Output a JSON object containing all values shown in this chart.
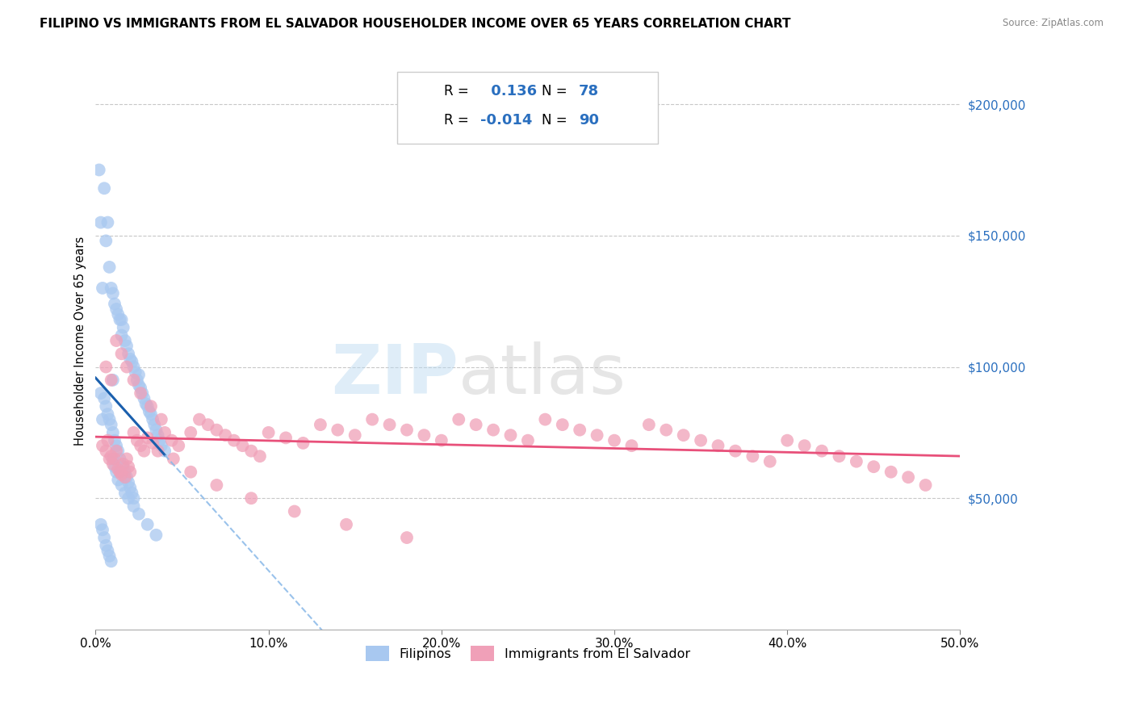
{
  "title": "FILIPINO VS IMMIGRANTS FROM EL SALVADOR HOUSEHOLDER INCOME OVER 65 YEARS CORRELATION CHART",
  "source": "Source: ZipAtlas.com",
  "ylabel": "Householder Income Over 65 years",
  "xlim": [
    0.0,
    0.5
  ],
  "ylim": [
    0,
    220000
  ],
  "xtick_labels": [
    "0.0%",
    "10.0%",
    "20.0%",
    "30.0%",
    "40.0%",
    "50.0%"
  ],
  "xtick_values": [
    0.0,
    0.1,
    0.2,
    0.3,
    0.4,
    0.5
  ],
  "ytick_labels": [
    "$50,000",
    "$100,000",
    "$150,000",
    "$200,000"
  ],
  "ytick_values": [
    50000,
    100000,
    150000,
    200000
  ],
  "R_blue": 0.136,
  "N_blue": 78,
  "R_pink": -0.014,
  "N_pink": 90,
  "blue_color": "#A8C8F0",
  "pink_color": "#F0A0B8",
  "blue_line_solid_color": "#1A5FAD",
  "blue_line_dash_color": "#88B8E8",
  "pink_line_color": "#E8507A",
  "watermark_zip": "ZIP",
  "watermark_atlas": "atlas",
  "blue_scatter_x": [
    0.002,
    0.003,
    0.003,
    0.004,
    0.004,
    0.005,
    0.005,
    0.006,
    0.006,
    0.007,
    0.007,
    0.008,
    0.008,
    0.009,
    0.009,
    0.01,
    0.01,
    0.01,
    0.011,
    0.011,
    0.012,
    0.012,
    0.013,
    0.013,
    0.014,
    0.014,
    0.015,
    0.015,
    0.016,
    0.016,
    0.017,
    0.017,
    0.018,
    0.018,
    0.019,
    0.019,
    0.02,
    0.02,
    0.021,
    0.021,
    0.022,
    0.022,
    0.023,
    0.024,
    0.025,
    0.025,
    0.026,
    0.027,
    0.028,
    0.029,
    0.03,
    0.031,
    0.032,
    0.033,
    0.034,
    0.035,
    0.036,
    0.037,
    0.038,
    0.04,
    0.003,
    0.004,
    0.005,
    0.006,
    0.007,
    0.008,
    0.009,
    0.01,
    0.011,
    0.012,
    0.013,
    0.015,
    0.017,
    0.019,
    0.022,
    0.025,
    0.03,
    0.035
  ],
  "blue_scatter_y": [
    175000,
    155000,
    90000,
    130000,
    80000,
    168000,
    88000,
    148000,
    85000,
    155000,
    82000,
    138000,
    80000,
    130000,
    78000,
    128000,
    95000,
    75000,
    124000,
    72000,
    122000,
    70000,
    120000,
    68000,
    118000,
    65000,
    118000,
    112000,
    115000,
    62000,
    110000,
    60000,
    108000,
    58000,
    105000,
    56000,
    103000,
    54000,
    102000,
    52000,
    100000,
    50000,
    98000,
    95000,
    97000,
    93000,
    92000,
    90000,
    88000,
    86000,
    85000,
    83000,
    82000,
    80000,
    78000,
    76000,
    74000,
    72000,
    70000,
    68000,
    40000,
    38000,
    35000,
    32000,
    30000,
    28000,
    26000,
    65000,
    62000,
    60000,
    57000,
    55000,
    52000,
    50000,
    47000,
    44000,
    40000,
    36000
  ],
  "pink_scatter_x": [
    0.004,
    0.006,
    0.007,
    0.008,
    0.009,
    0.01,
    0.011,
    0.012,
    0.013,
    0.014,
    0.015,
    0.016,
    0.017,
    0.018,
    0.019,
    0.02,
    0.022,
    0.024,
    0.026,
    0.028,
    0.03,
    0.033,
    0.036,
    0.04,
    0.044,
    0.048,
    0.055,
    0.06,
    0.065,
    0.07,
    0.075,
    0.08,
    0.085,
    0.09,
    0.095,
    0.1,
    0.11,
    0.12,
    0.13,
    0.14,
    0.15,
    0.16,
    0.17,
    0.18,
    0.19,
    0.2,
    0.21,
    0.22,
    0.23,
    0.24,
    0.25,
    0.26,
    0.27,
    0.28,
    0.29,
    0.3,
    0.31,
    0.32,
    0.33,
    0.34,
    0.35,
    0.36,
    0.37,
    0.38,
    0.39,
    0.4,
    0.41,
    0.42,
    0.43,
    0.44,
    0.45,
    0.46,
    0.47,
    0.48,
    0.006,
    0.009,
    0.012,
    0.015,
    0.018,
    0.022,
    0.026,
    0.032,
    0.038,
    0.045,
    0.055,
    0.07,
    0.09,
    0.115,
    0.145,
    0.18
  ],
  "pink_scatter_y": [
    70000,
    68000,
    72000,
    65000,
    66000,
    63000,
    65000,
    68000,
    61000,
    60000,
    59000,
    63000,
    58000,
    65000,
    62000,
    60000,
    75000,
    72000,
    70000,
    68000,
    73000,
    71000,
    68000,
    75000,
    72000,
    70000,
    75000,
    80000,
    78000,
    76000,
    74000,
    72000,
    70000,
    68000,
    66000,
    75000,
    73000,
    71000,
    78000,
    76000,
    74000,
    80000,
    78000,
    76000,
    74000,
    72000,
    80000,
    78000,
    76000,
    74000,
    72000,
    80000,
    78000,
    76000,
    74000,
    72000,
    70000,
    78000,
    76000,
    74000,
    72000,
    70000,
    68000,
    66000,
    64000,
    72000,
    70000,
    68000,
    66000,
    64000,
    62000,
    60000,
    58000,
    55000,
    100000,
    95000,
    110000,
    105000,
    100000,
    95000,
    90000,
    85000,
    80000,
    65000,
    60000,
    55000,
    50000,
    45000,
    40000,
    35000
  ]
}
